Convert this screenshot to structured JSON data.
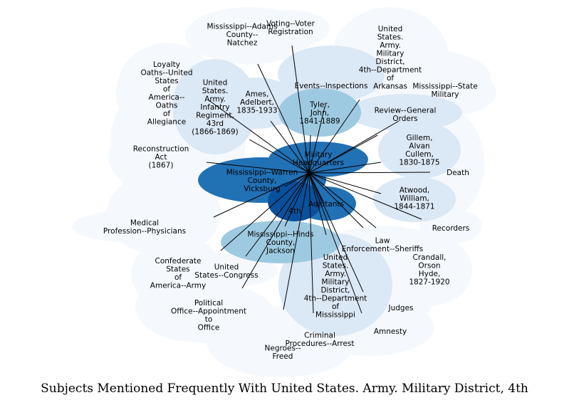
{
  "caption": "Subjects Mentioned Frequently With United States. Army. Military District, 4th",
  "colors": {
    "lightest": "#f5f9fe",
    "light": "#dbe8f5",
    "mid": "#9ecae1",
    "dark": "#2171b5",
    "darkest": "#08519c",
    "edge": "#000000"
  },
  "nodes": [
    {
      "id": "medical",
      "label": "Medical\nProfession--Physicians",
      "shade": "lightest"
    },
    {
      "id": "voting",
      "label": "Voting--Voter\nRegistration",
      "shade": "lightest"
    },
    {
      "id": "natchez",
      "label": "Mississippi--Adams\nCounty--\nNatchez",
      "shade": "lightest"
    },
    {
      "id": "loyalty",
      "label": "Loyalty\nOaths--United\nStates\nof\nAmerica--\nOaths\nof\nAllegiance",
      "shade": "lightest"
    },
    {
      "id": "reconstruction",
      "label": "Reconstruction\nAct\n(1867)",
      "shade": "lightest"
    },
    {
      "id": "political",
      "label": "Political\nOffice--Appointment\nto\nOffice",
      "shade": "lightest"
    },
    {
      "id": "confed",
      "label": "Confederate\nStates\nof\nAmerica--Army",
      "shade": "lightest"
    },
    {
      "id": "freed",
      "label": "Negroes--\nFreed",
      "shade": "lightest"
    },
    {
      "id": "criminal",
      "label": "Criminal\nProcedures--Arrest",
      "shade": "lightest"
    },
    {
      "id": "amnesty",
      "label": "Amnesty",
      "shade": "lightest"
    },
    {
      "id": "judges",
      "label": "Judges",
      "shade": "lightest"
    },
    {
      "id": "crandall",
      "label": "Crandall,\nOrson\nHyde,\n1827-1920",
      "shade": "lightest"
    },
    {
      "id": "recorders",
      "label": "Recorders",
      "shade": "lightest"
    },
    {
      "id": "death",
      "label": "Death",
      "shade": "lightest"
    },
    {
      "id": "statemilitary",
      "label": "Mississippi--State\nMilitary",
      "shade": "lightest"
    },
    {
      "id": "law",
      "label": "Law\nEnforcement--Sheriffs",
      "shade": "lightest"
    },
    {
      "id": "review",
      "label": "Review--General\nOrders",
      "shade": "light"
    },
    {
      "id": "atwood",
      "label": "Atwood,\nWilliam,\n1844-1871",
      "shade": "light"
    },
    {
      "id": "gillem",
      "label": "Gillem,\nAlvan\nCullem,\n1830-1875",
      "shade": "light"
    },
    {
      "id": "arkansas",
      "label": "United\nStates.\nArmy.\nMilitary\nDistrict,\n4th--Department\nof\nArkansas",
      "shade": "lightest"
    },
    {
      "id": "events",
      "label": "Events--Inspections",
      "shade": "light"
    },
    {
      "id": "ames",
      "label": "Ames,\nAdelbert,\n1835-1933",
      "shade": "light"
    },
    {
      "id": "tyler",
      "label": "Tyler,\nJohn,\n1841-1889",
      "shade": "mid"
    },
    {
      "id": "infantry",
      "label": "United\nStates.\nArmy.\nInfantry\nRegiment,\n43rd\n(1866-1869)",
      "shade": "light"
    },
    {
      "id": "hinds",
      "label": "Mississippi--Hinds\nCounty,\nJackson",
      "shade": "mid"
    },
    {
      "id": "congress",
      "label": "United\nStates--Congress",
      "shade": "lightest"
    },
    {
      "id": "mississippi",
      "label": "United\nStates.\nArmy.\nMilitary\nDistrict,\n4th--Department\nof\nMississippi",
      "shade": "light"
    },
    {
      "id": "headquarters",
      "label": "Military\nHeadquarters",
      "shade": "dark"
    },
    {
      "id": "warren",
      "label": "Mississippi--Warren\nCounty,\nVicksburg",
      "shade": "dark"
    },
    {
      "id": "adjutants",
      "label": "Adjutants",
      "shade": "dark"
    },
    {
      "id": "center",
      "label": "United States. Army. Military District, 4th",
      "shade": "darkest"
    }
  ],
  "edges": [
    [
      "center",
      "medical"
    ],
    [
      "center",
      "voting"
    ],
    [
      "center",
      "natchez"
    ],
    [
      "center",
      "loyalty"
    ],
    [
      "center",
      "reconstruction"
    ],
    [
      "center",
      "political"
    ],
    [
      "center",
      "confed"
    ],
    [
      "center",
      "freed"
    ],
    [
      "center",
      "criminal"
    ],
    [
      "center",
      "amnesty"
    ],
    [
      "center",
      "judges"
    ],
    [
      "center",
      "crandall"
    ],
    [
      "center",
      "recorders"
    ],
    [
      "center",
      "death"
    ],
    [
      "center",
      "statemilitary"
    ],
    [
      "center",
      "law"
    ],
    [
      "center",
      "review"
    ],
    [
      "center",
      "atwood"
    ],
    [
      "center",
      "gillem"
    ],
    [
      "center",
      "arkansas"
    ],
    [
      "center",
      "events"
    ],
    [
      "center",
      "ames"
    ],
    [
      "center",
      "tyler"
    ],
    [
      "center",
      "infantry"
    ],
    [
      "center",
      "hinds"
    ],
    [
      "center",
      "congress"
    ],
    [
      "center",
      "mississippi"
    ],
    [
      "center",
      "headquarters"
    ],
    [
      "center",
      "warren"
    ],
    [
      "center",
      "adjutants"
    ]
  ]
}
